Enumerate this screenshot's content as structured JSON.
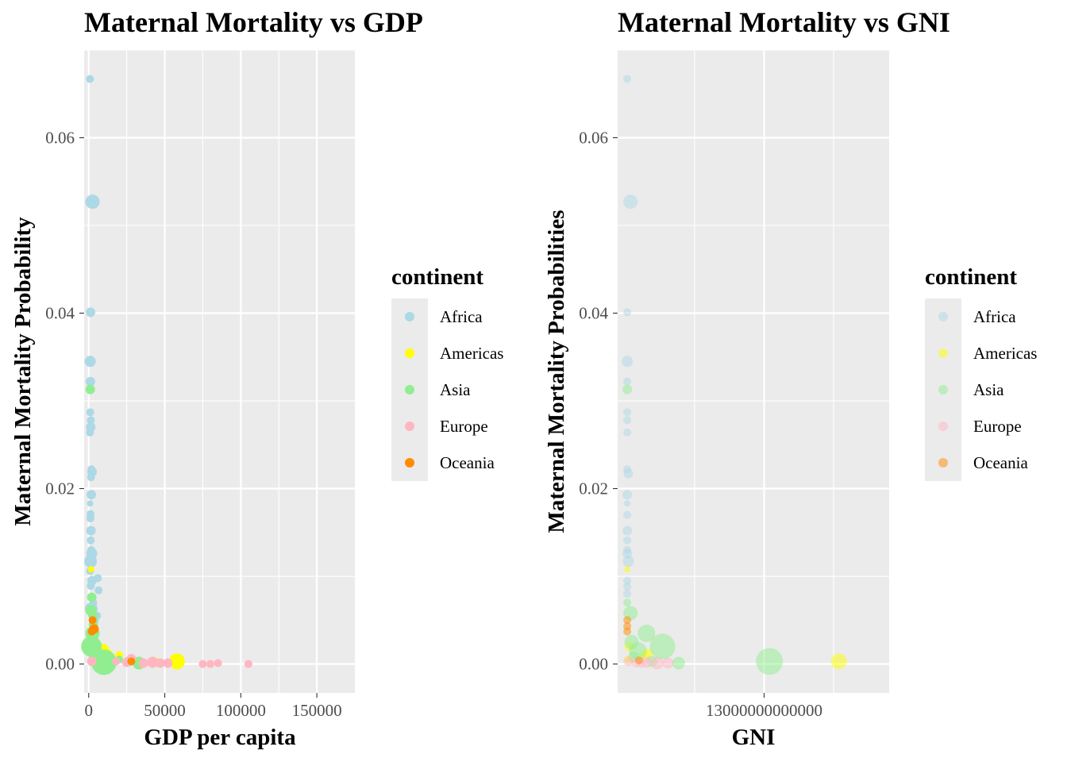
{
  "chart_data": [
    {
      "type": "scatter",
      "title": "Maternal Mortality vs GDP",
      "xlabel": "GDP per capita",
      "ylabel": "Maternal Mortality Probability",
      "xlim": [
        -3000,
        175000
      ],
      "ylim": [
        -0.0033,
        0.07
      ],
      "xticks": [
        0,
        50000,
        100000,
        150000
      ],
      "xtick_labels": [
        "0",
        "50000",
        "100000",
        "150000"
      ],
      "yticks": [
        0,
        0.02,
        0.04,
        0.06
      ],
      "ytick_labels": [
        "0.00",
        "0.02",
        "0.04",
        "0.06"
      ],
      "grid": true,
      "point_opacity": 1.0,
      "legend": {
        "title": "continent",
        "position": "right",
        "entries": [
          "Africa",
          "Americas",
          "Asia",
          "Europe",
          "Oceania"
        ]
      },
      "colors": {
        "Africa": "#add8e6",
        "Americas": "#ffff00",
        "Asia": "#90ee90",
        "Europe": "#ffb6c1",
        "Oceania": "#ff8c00"
      },
      "series": [
        {
          "name": "Africa",
          "points": [
            {
              "x": 800,
              "y": 0.0667,
              "s": 5
            },
            {
              "x": 2500,
              "y": 0.0527,
              "s": 9
            },
            {
              "x": 1200,
              "y": 0.0401,
              "s": 6
            },
            {
              "x": 1000,
              "y": 0.0345,
              "s": 7
            },
            {
              "x": 1100,
              "y": 0.0322,
              "s": 6
            },
            {
              "x": 900,
              "y": 0.0313,
              "s": 5
            },
            {
              "x": 1000,
              "y": 0.0287,
              "s": 5
            },
            {
              "x": 1400,
              "y": 0.0278,
              "s": 5
            },
            {
              "x": 1300,
              "y": 0.027,
              "s": 6
            },
            {
              "x": 800,
              "y": 0.0264,
              "s": 5
            },
            {
              "x": 1800,
              "y": 0.0222,
              "s": 5
            },
            {
              "x": 2200,
              "y": 0.0219,
              "s": 6
            },
            {
              "x": 1500,
              "y": 0.0213,
              "s": 5
            },
            {
              "x": 1700,
              "y": 0.0193,
              "s": 6
            },
            {
              "x": 900,
              "y": 0.0183,
              "s": 4
            },
            {
              "x": 1200,
              "y": 0.0171,
              "s": 5
            },
            {
              "x": 1100,
              "y": 0.0166,
              "s": 5
            },
            {
              "x": 1500,
              "y": 0.0152,
              "s": 6
            },
            {
              "x": 1300,
              "y": 0.0141,
              "s": 5
            },
            {
              "x": 1600,
              "y": 0.013,
              "s": 5
            },
            {
              "x": 2000,
              "y": 0.0126,
              "s": 7
            },
            {
              "x": 1200,
              "y": 0.0117,
              "s": 8
            },
            {
              "x": 900,
              "y": 0.0106,
              "s": 5
            },
            {
              "x": 6000,
              "y": 0.0098,
              "s": 5
            },
            {
              "x": 2200,
              "y": 0.0095,
              "s": 6
            },
            {
              "x": 1400,
              "y": 0.0089,
              "s": 5
            },
            {
              "x": 6500,
              "y": 0.0084,
              "s": 5
            },
            {
              "x": 3000,
              "y": 0.007,
              "s": 5
            },
            {
              "x": 1700,
              "y": 0.0063,
              "s": 8
            },
            {
              "x": 2500,
              "y": 0.0058,
              "s": 6
            },
            {
              "x": 4000,
              "y": 0.005,
              "s": 5
            },
            {
              "x": 5500,
              "y": 0.0055,
              "s": 5
            },
            {
              "x": 3500,
              "y": 0.003,
              "s": 5
            }
          ]
        },
        {
          "name": "Americas",
          "points": [
            {
              "x": 1500,
              "y": 0.0108,
              "s": 4
            },
            {
              "x": 9000,
              "y": 0.0015,
              "s": 9
            },
            {
              "x": 6000,
              "y": 0.002,
              "s": 6
            },
            {
              "x": 12000,
              "y": 0.0008,
              "s": 6
            },
            {
              "x": 16000,
              "y": 0.0005,
              "s": 6
            },
            {
              "x": 20000,
              "y": 0.001,
              "s": 5
            },
            {
              "x": 3000,
              "y": 0.0028,
              "s": 5
            },
            {
              "x": 8000,
              "y": 0.0012,
              "s": 5
            },
            {
              "x": 44000,
              "y": 0.0002,
              "s": 6
            },
            {
              "x": 58000,
              "y": 0.0003,
              "s": 10
            },
            {
              "x": 13000,
              "y": 0.0012,
              "s": 5
            }
          ]
        },
        {
          "name": "Asia",
          "points": [
            {
              "x": 1000,
              "y": 0.0313,
              "s": 6
            },
            {
              "x": 2000,
              "y": 0.0076,
              "s": 6
            },
            {
              "x": 1500,
              "y": 0.0061,
              "s": 7
            },
            {
              "x": 2500,
              "y": 0.0035,
              "s": 9
            },
            {
              "x": 1800,
              "y": 0.002,
              "s": 13
            },
            {
              "x": 10000,
              "y": 0.0002,
              "s": 16
            },
            {
              "x": 5000,
              "y": 0.001,
              "s": 10
            },
            {
              "x": 3000,
              "y": 0.0045,
              "s": 6
            },
            {
              "x": 15000,
              "y": 0.0002,
              "s": 7
            },
            {
              "x": 33000,
              "y": 0.0001,
              "s": 8
            },
            {
              "x": 26000,
              "y": 0.0003,
              "s": 6
            },
            {
              "x": 20000,
              "y": 0.0005,
              "s": 5
            },
            {
              "x": 4000,
              "y": 0.0015,
              "s": 7
            },
            {
              "x": 2800,
              "y": 0.0055,
              "s": 6
            }
          ]
        },
        {
          "name": "Europe",
          "points": [
            {
              "x": 2000,
              "y": 0.0003,
              "s": 6
            },
            {
              "x": 25000,
              "y": 0.0002,
              "s": 6
            },
            {
              "x": 28000,
              "y": 0.0006,
              "s": 6
            },
            {
              "x": 42000,
              "y": 0.0002,
              "s": 7
            },
            {
              "x": 47000,
              "y": 0.0001,
              "s": 6
            },
            {
              "x": 52000,
              "y": 0.0001,
              "s": 6
            },
            {
              "x": 75000,
              "y": 0.0,
              "s": 5
            },
            {
              "x": 80000,
              "y": 0.0,
              "s": 5
            },
            {
              "x": 85000,
              "y": 0.0001,
              "s": 5
            },
            {
              "x": 105000,
              "y": 0.0,
              "s": 5
            },
            {
              "x": 36000,
              "y": 0.0001,
              "s": 6
            },
            {
              "x": 18000,
              "y": 0.0003,
              "s": 5
            }
          ]
        },
        {
          "name": "Oceania",
          "points": [
            {
              "x": 2500,
              "y": 0.005,
              "s": 5
            },
            {
              "x": 3500,
              "y": 0.004,
              "s": 6
            },
            {
              "x": 2000,
              "y": 0.0037,
              "s": 5
            },
            {
              "x": 28000,
              "y": 0.0003,
              "s": 5
            }
          ]
        }
      ]
    },
    {
      "type": "scatter",
      "title": "Maternal Mortality vs GNI",
      "xlabel": "GNI",
      "ylabel": "Maternal Mortality Probabilities",
      "xlim": [
        -700000000000,
        24700000000000
      ],
      "ylim": [
        -0.0033,
        0.07
      ],
      "xticks": [
        13000000000000
      ],
      "xtick_labels": [
        "13000000000000"
      ],
      "yticks": [
        0,
        0.02,
        0.04,
        0.06
      ],
      "ytick_labels": [
        "0.00",
        "0.02",
        "0.04",
        "0.06"
      ],
      "grid": true,
      "point_opacity": 0.5,
      "legend": {
        "title": "continent",
        "position": "right",
        "entries": [
          "Africa",
          "Americas",
          "Asia",
          "Europe",
          "Oceania"
        ]
      },
      "colors": {
        "Africa": "#add8e6",
        "Americas": "#ffff00",
        "Asia": "#90ee90",
        "Europe": "#ffb6c1",
        "Oceania": "#ff8c00"
      },
      "series": [
        {
          "name": "Africa",
          "points": [
            {
              "x": 200000000000,
              "y": 0.0667,
              "s": 5
            },
            {
              "x": 500000000000,
              "y": 0.0527,
              "s": 9
            },
            {
              "x": 200000000000,
              "y": 0.0401,
              "s": 5
            },
            {
              "x": 200000000000,
              "y": 0.0345,
              "s": 7
            },
            {
              "x": 200000000000,
              "y": 0.0322,
              "s": 5
            },
            {
              "x": 200000000000,
              "y": 0.0287,
              "s": 5
            },
            {
              "x": 200000000000,
              "y": 0.0278,
              "s": 5
            },
            {
              "x": 200000000000,
              "y": 0.0264,
              "s": 5
            },
            {
              "x": 200000000000,
              "y": 0.0222,
              "s": 5
            },
            {
              "x": 300000000000,
              "y": 0.0217,
              "s": 6
            },
            {
              "x": 200000000000,
              "y": 0.0193,
              "s": 6
            },
            {
              "x": 200000000000,
              "y": 0.0183,
              "s": 4
            },
            {
              "x": 200000000000,
              "y": 0.017,
              "s": 5
            },
            {
              "x": 200000000000,
              "y": 0.0152,
              "s": 6
            },
            {
              "x": 200000000000,
              "y": 0.0141,
              "s": 5
            },
            {
              "x": 200000000000,
              "y": 0.013,
              "s": 5
            },
            {
              "x": 200000000000,
              "y": 0.0126,
              "s": 6
            },
            {
              "x": 300000000000,
              "y": 0.0117,
              "s": 7
            },
            {
              "x": 200000000000,
              "y": 0.0095,
              "s": 5
            },
            {
              "x": 200000000000,
              "y": 0.0088,
              "s": 5
            },
            {
              "x": 200000000000,
              "y": 0.008,
              "s": 5
            }
          ]
        },
        {
          "name": "Americas",
          "points": [
            {
              "x": 200000000000,
              "y": 0.0108,
              "s": 4
            },
            {
              "x": 400000000000,
              "y": 0.002,
              "s": 6
            },
            {
              "x": 1800000000000,
              "y": 0.001,
              "s": 6
            },
            {
              "x": 2200000000000,
              "y": 0.0012,
              "s": 6
            },
            {
              "x": 20000000000000,
              "y": 0.0003,
              "s": 10
            },
            {
              "x": 300000000000,
              "y": 0.0005,
              "s": 5
            }
          ]
        },
        {
          "name": "Asia",
          "points": [
            {
              "x": 200000000000,
              "y": 0.0313,
              "s": 6
            },
            {
              "x": 200000000000,
              "y": 0.007,
              "s": 5
            },
            {
              "x": 500000000000,
              "y": 0.0058,
              "s": 9
            },
            {
              "x": 2000000000000,
              "y": 0.0035,
              "s": 11
            },
            {
              "x": 3500000000000,
              "y": 0.002,
              "s": 16
            },
            {
              "x": 13500000000000,
              "y": 0.0003,
              "s": 17
            },
            {
              "x": 1200000000000,
              "y": 0.0015,
              "s": 11
            },
            {
              "x": 600000000000,
              "y": 0.0025,
              "s": 9
            },
            {
              "x": 5000000000000,
              "y": 0.0001,
              "s": 8
            },
            {
              "x": 2500000000000,
              "y": 0.0003,
              "s": 7
            },
            {
              "x": 800000000000,
              "y": 0.0008,
              "s": 7
            }
          ]
        },
        {
          "name": "Europe",
          "points": [
            {
              "x": 300000000000,
              "y": 0.0003,
              "s": 6
            },
            {
              "x": 1000000000000,
              "y": 0.0002,
              "s": 6
            },
            {
              "x": 2000000000000,
              "y": 0.0002,
              "s": 7
            },
            {
              "x": 3000000000000,
              "y": 0.0001,
              "s": 8
            },
            {
              "x": 4000000000000,
              "y": 0.0001,
              "s": 7
            },
            {
              "x": 1500000000000,
              "y": 0.0001,
              "s": 6
            }
          ]
        },
        {
          "name": "Oceania",
          "points": [
            {
              "x": 200000000000,
              "y": 0.005,
              "s": 5
            },
            {
              "x": 200000000000,
              "y": 0.0043,
              "s": 5
            },
            {
              "x": 200000000000,
              "y": 0.0037,
              "s": 5
            },
            {
              "x": 1300000000000,
              "y": 0.0004,
              "s": 5
            }
          ]
        }
      ]
    }
  ]
}
